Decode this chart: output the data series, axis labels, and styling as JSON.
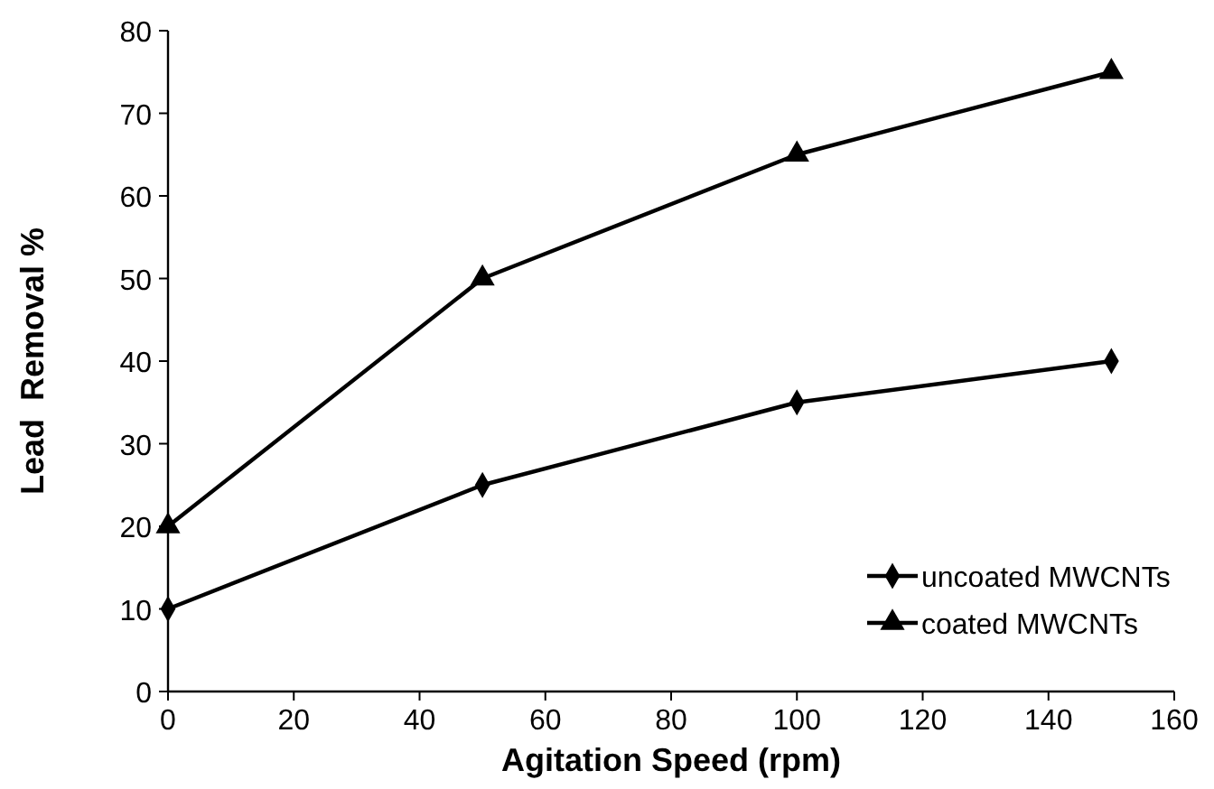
{
  "chart_data": {
    "type": "line",
    "xlabel": "Agitation Speed (rpm)",
    "ylabel": "Lead  Removal %",
    "xlim": [
      0,
      160
    ],
    "xticks": [
      0,
      20,
      40,
      60,
      80,
      100,
      120,
      140,
      160
    ],
    "ylim": [
      0,
      80
    ],
    "yticks": [
      0,
      10,
      20,
      30,
      40,
      50,
      60,
      70,
      80
    ],
    "grid": false,
    "legend": "bottom right",
    "series": [
      {
        "name": "uncoated MWCNTs",
        "color": "#000000",
        "marker": "diamond",
        "x": [
          0,
          50,
          100,
          150
        ],
        "values": [
          10,
          25,
          35,
          40
        ]
      },
      {
        "name": "coated MWCNTs",
        "color": "#000000",
        "marker": "triangle",
        "x": [
          0,
          50,
          100,
          150
        ],
        "values": [
          20,
          50,
          65,
          75
        ]
      }
    ]
  }
}
